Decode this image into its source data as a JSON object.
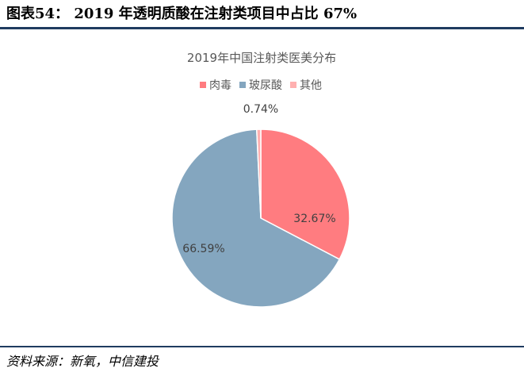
{
  "figure": {
    "title": "图表54： 2019 年透明质酸在注射类项目中占比 67%",
    "source": "资料来源：新氧，中信建投"
  },
  "chart_data": {
    "type": "pie",
    "title": "2019年中国注射类医美分布",
    "legend_position": "top",
    "slices": [
      {
        "label": "肉毒",
        "value": 32.67,
        "display": "32.67%",
        "color": "#ff7c80"
      },
      {
        "label": "玻尿酸",
        "value": 66.59,
        "display": "66.59%",
        "color": "#84a6bf"
      },
      {
        "label": "其他",
        "value": 0.74,
        "display": "0.74%",
        "color": "#ffb0b0"
      }
    ]
  }
}
